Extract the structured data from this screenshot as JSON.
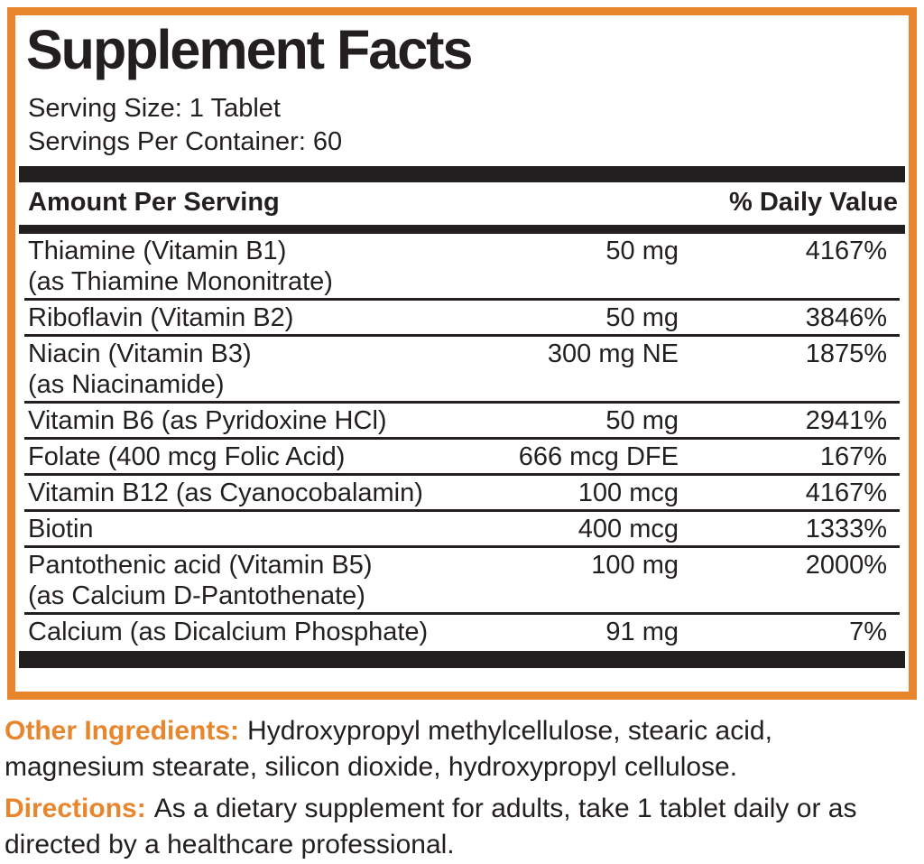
{
  "colors": {
    "accent_orange": "#E8862D",
    "text_black": "#231F20",
    "divider_black": "#231F20",
    "background": "#FFFFFF"
  },
  "panel": {
    "title": "Supplement Facts",
    "serving_size": "Serving Size: 1 Tablet",
    "servings_per_container": "Servings Per Container: 60",
    "columns": {
      "left": "Amount Per Serving",
      "right": "% Daily Value"
    },
    "rows": [
      {
        "name": "Thiamine (Vitamin B1)",
        "sub": "(as Thiamine Mononitrate)",
        "amount": "50 mg",
        "dv": "4167%"
      },
      {
        "name": "Riboflavin (Vitamin B2)",
        "sub": "",
        "amount": "50 mg",
        "dv": "3846%"
      },
      {
        "name": "Niacin (Vitamin B3)",
        "sub": "(as Niacinamide)",
        "amount": "300 mg NE",
        "dv": "1875%"
      },
      {
        "name": "Vitamin B6 (as Pyridoxine HCl)",
        "sub": "",
        "amount": "50 mg",
        "dv": "2941%"
      },
      {
        "name": "Folate (400 mcg Folic Acid)",
        "sub": "",
        "amount": "666 mcg DFE",
        "dv": "167%"
      },
      {
        "name": "Vitamin B12 (as Cyanocobalamin)",
        "sub": "",
        "amount": "100 mcg",
        "dv": "4167%"
      },
      {
        "name": "Biotin",
        "sub": "",
        "amount": "400 mcg",
        "dv": "1333%"
      },
      {
        "name": "Pantothenic acid (Vitamin B5)",
        "sub": "(as Calcium D-Pantothenate)",
        "amount": "100 mg",
        "dv": "2000%"
      },
      {
        "name": "Calcium (as Dicalcium Phosphate)",
        "sub": "",
        "amount": "91 mg",
        "dv": "7%"
      }
    ]
  },
  "footer": {
    "other_ingredients_label": "Other Ingredients:",
    "other_ingredients_text": "Hydroxypropyl methylcellulose, stearic acid, magnesium stearate, silicon dioxide, hydroxypropyl cellulose.",
    "directions_label": "Directions:",
    "directions_text": "As a dietary supplement for adults, take 1 tablet daily or as directed by a healthcare professional."
  }
}
